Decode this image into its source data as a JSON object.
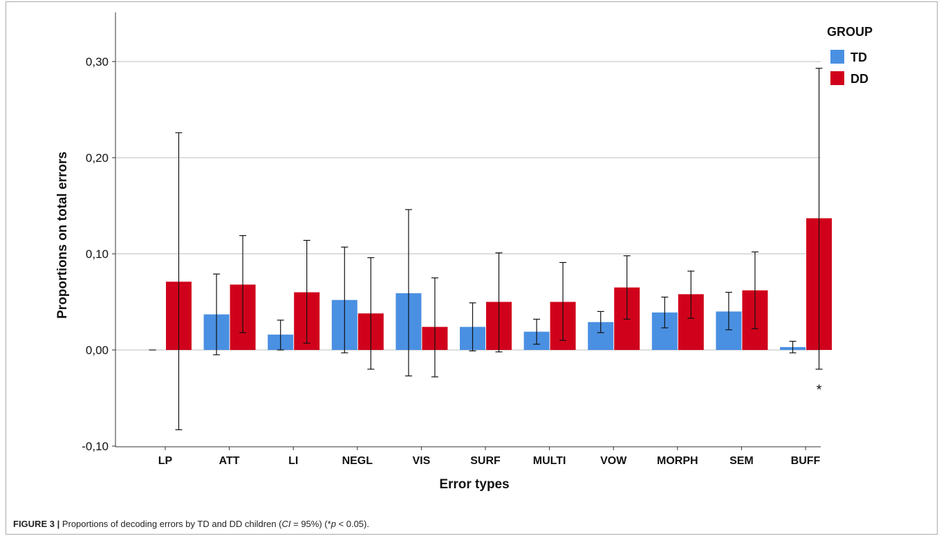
{
  "chart_data": {
    "type": "bar",
    "categories": [
      "LP",
      "ATT",
      "LI",
      "NEGL",
      "VIS",
      "SURF",
      "MULTI",
      "VOW",
      "MORPH",
      "SEM",
      "BUFF"
    ],
    "series": [
      {
        "name": "TD",
        "color": "#4a90e2",
        "values": [
          0.0,
          0.037,
          0.016,
          0.052,
          0.059,
          0.024,
          0.019,
          0.029,
          0.039,
          0.04,
          0.003
        ],
        "ci_low": [
          0.0,
          -0.005,
          0.0,
          -0.003,
          -0.027,
          -0.001,
          0.006,
          0.018,
          0.023,
          0.021,
          -0.003
        ],
        "ci_high": [
          0.0,
          0.079,
          0.031,
          0.107,
          0.146,
          0.049,
          0.032,
          0.04,
          0.055,
          0.06,
          0.009
        ]
      },
      {
        "name": "DD",
        "color": "#d0021b",
        "values": [
          0.071,
          0.068,
          0.06,
          0.038,
          0.024,
          0.05,
          0.05,
          0.065,
          0.058,
          0.062,
          0.137
        ],
        "ci_low": [
          -0.083,
          0.018,
          0.007,
          -0.02,
          -0.028,
          -0.002,
          0.01,
          0.032,
          0.033,
          0.022,
          -0.02
        ],
        "ci_high": [
          0.226,
          0.119,
          0.114,
          0.096,
          0.075,
          0.101,
          0.091,
          0.098,
          0.082,
          0.102,
          0.293
        ]
      }
    ],
    "xlabel": "Error types",
    "ylabel": "Proportions on total errors",
    "ylim": [
      -0.1,
      0.3
    ],
    "yticks": [
      -0.1,
      0.0,
      0.1,
      0.2,
      0.3
    ],
    "ytick_labels": [
      "-0,10",
      "0,00",
      "0,10",
      "0,20",
      "0,30"
    ],
    "grid": true,
    "legend": {
      "title": "GROUP",
      "placement": "top-right"
    },
    "annotations": [
      {
        "category": "BUFF",
        "text": "*"
      }
    ]
  },
  "caption": {
    "label": "FIGURE 3 |",
    "text_1": " Proportions of decoding errors by TD and DD children (",
    "ci_symbol": "CI",
    "text_2": " = 95%) (*",
    "p_symbol": "p",
    "text_3": " < 0.05)."
  }
}
